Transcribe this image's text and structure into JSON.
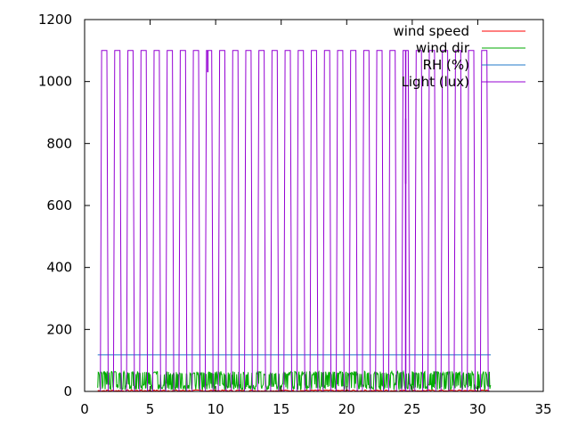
{
  "chart_data": {
    "type": "line",
    "title": "",
    "xlabel": "",
    "ylabel": "",
    "xlim": [
      0,
      35
    ],
    "ylim": [
      0,
      1200
    ],
    "x_ticks": [
      "0",
      "5",
      "10",
      "15",
      "20",
      "25",
      "30",
      "35"
    ],
    "y_ticks": [
      "0",
      "200",
      "400",
      "600",
      "800",
      "1000",
      "1200"
    ],
    "grid": false,
    "legend_position": "top-right",
    "series": [
      {
        "name": "wind speed",
        "color": "#ff0000",
        "pattern": "near-zero",
        "range": [
          0,
          5
        ],
        "x_range": [
          1,
          31
        ]
      },
      {
        "name": "wind dir",
        "color": "#00aa00",
        "pattern": "noisy",
        "range": [
          5,
          65
        ],
        "x_range": [
          1,
          31
        ]
      },
      {
        "name": "RH (%)",
        "color": "#1f78c8",
        "pattern": "constant",
        "value": 118,
        "x_range": [
          1,
          31
        ]
      },
      {
        "name": "Light (lux)",
        "color": "#9400d3",
        "pattern": "daily-square-wave",
        "peak": 1100,
        "x_range": [
          1,
          31
        ],
        "anomalies": [
          {
            "x": 9.4,
            "dip_to": 1030
          },
          {
            "x": 24.5,
            "dip_to": 670
          },
          {
            "x": 24.5,
            "spike_from": 880
          }
        ]
      }
    ]
  }
}
